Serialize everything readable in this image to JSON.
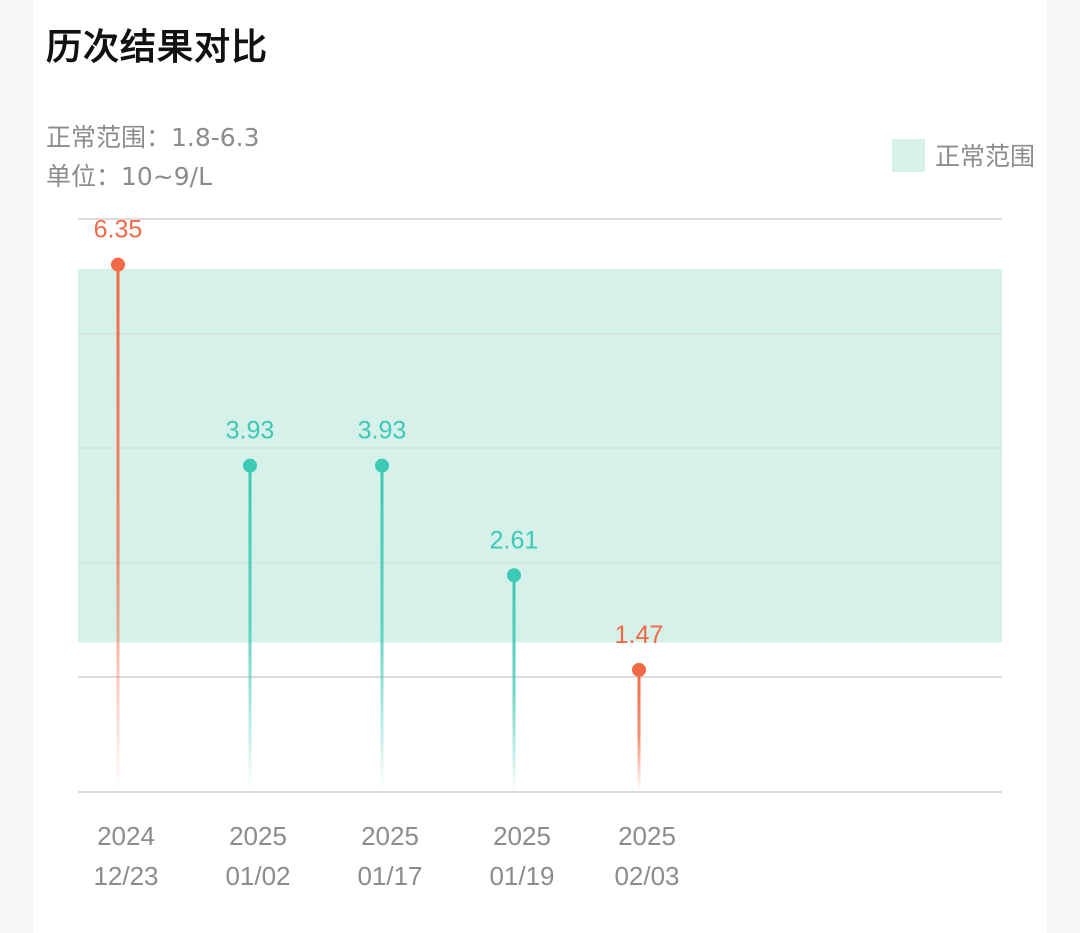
{
  "title": "历次结果对比",
  "normal_range_label": "正常范围：1.8-6.3",
  "unit_label": "单位：10~9/L",
  "legend": {
    "label": "正常范围"
  },
  "colors": {
    "normal_band": "#d6f0ea",
    "in_range": "#3cc9b5",
    "out_of_range": "#f26a45",
    "grid": "#dcdcdc",
    "axis_text": "#8c8c8c"
  },
  "chart_data": {
    "type": "stem",
    "title": "历次结果对比",
    "ylim": [
      0,
      6.9
    ],
    "normal_range": [
      1.8,
      6.3
    ],
    "unit": "10~9/L",
    "points": [
      {
        "date_year": "2024",
        "date_md": "12/23",
        "value": 6.35,
        "label": "6.35",
        "status": "out_of_range"
      },
      {
        "date_year": "2025",
        "date_md": "01/02",
        "value": 3.93,
        "label": "3.93",
        "status": "in_range"
      },
      {
        "date_year": "2025",
        "date_md": "01/17",
        "value": 3.93,
        "label": "3.93",
        "status": "in_range"
      },
      {
        "date_year": "2025",
        "date_md": "01/19",
        "value": 2.61,
        "label": "2.61",
        "status": "in_range"
      },
      {
        "date_year": "2025",
        "date_md": "02/03",
        "value": 1.47,
        "label": "1.47",
        "status": "out_of_range"
      }
    ],
    "legend_position": "top-right",
    "grid": true
  }
}
